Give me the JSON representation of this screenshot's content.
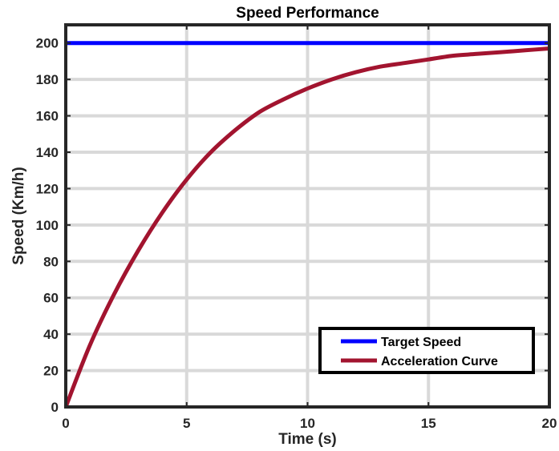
{
  "chart_data": {
    "type": "line",
    "title": "Speed Performance",
    "xlabel": "Time (s)",
    "ylabel": "Speed (Km/h)",
    "xlim": [
      0,
      20
    ],
    "ylim": [
      0,
      210
    ],
    "x_ticks": [
      "0",
      "5",
      "10",
      "15",
      "20"
    ],
    "y_ticks": [
      "0",
      "20",
      "40",
      "60",
      "80",
      "100",
      "120",
      "140",
      "160",
      "180",
      "200"
    ],
    "grid": true,
    "legend_position": "bottom-right",
    "series": [
      {
        "name": "Target Speed",
        "color": "#0000ff",
        "x": [
          0,
          5,
          10,
          15,
          20
        ],
        "y": [
          200,
          200,
          200,
          200,
          200
        ]
      },
      {
        "name": "Acceleration Curve",
        "color": "#a2142f",
        "x": [
          0,
          1,
          2,
          3,
          4,
          5,
          6,
          7,
          8,
          9,
          10,
          11,
          12,
          13,
          14,
          15,
          16,
          17,
          18,
          19,
          20
        ],
        "y": [
          0,
          34,
          62,
          86,
          107,
          125,
          140,
          152,
          162,
          169,
          175,
          180,
          184,
          187,
          189,
          191,
          193,
          194,
          195,
          196,
          197
        ]
      }
    ]
  }
}
